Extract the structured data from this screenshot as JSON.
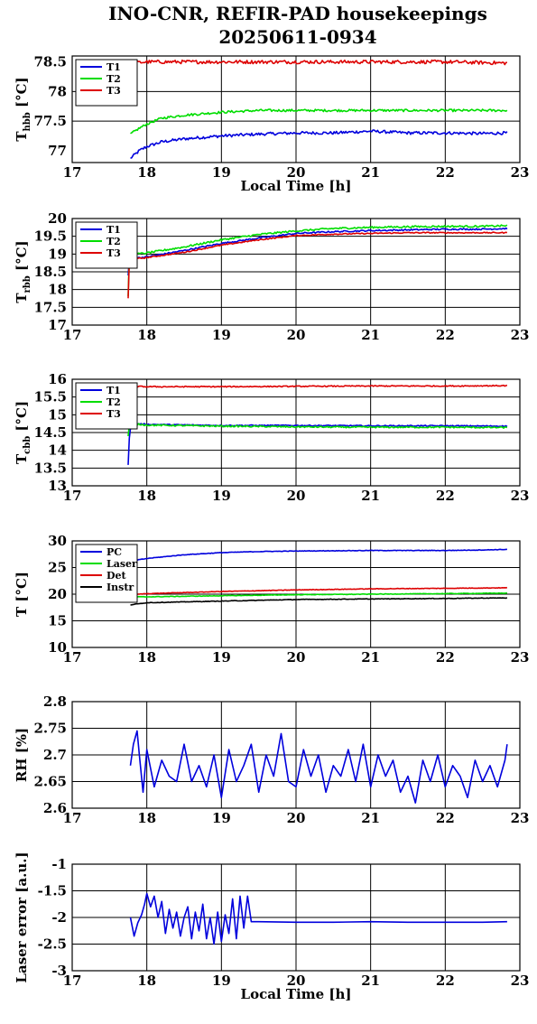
{
  "figure": {
    "title_line1": "INO-CNR, REFIR-PAD housekeepings",
    "title_line2": "20250611-0934"
  },
  "colors": {
    "blue": "#0000dd",
    "green": "#00dd00",
    "red": "#dd0000",
    "black": "#000000"
  },
  "chart_data": [
    {
      "type": "line",
      "ylabel_main": "T",
      "ylabel_sub": "hbb",
      "ylabel_tail": " [°C]",
      "xlabel": "Local Time [h]",
      "xlim": [
        17,
        23
      ],
      "ylim": [
        76.8,
        78.6
      ],
      "xticks": [
        17,
        18,
        19,
        20,
        21,
        22,
        23
      ],
      "yticks": [
        77,
        77.5,
        78,
        78.5
      ],
      "ytick_labels": [
        "77",
        "77.5",
        "78",
        "78.5"
      ],
      "legend_position": "top-left",
      "series": [
        {
          "name": "T1",
          "color": "#0000dd",
          "x": [
            17.78,
            17.9,
            18.0,
            18.2,
            18.5,
            19.0,
            19.5,
            20.0,
            20.5,
            21.0,
            21.5,
            22.0,
            22.5,
            22.83
          ],
          "y": [
            76.87,
            77.0,
            77.07,
            77.15,
            77.2,
            77.25,
            77.28,
            77.3,
            77.3,
            77.33,
            77.3,
            77.3,
            77.29,
            77.3
          ],
          "noise": 0.025
        },
        {
          "name": "T2",
          "color": "#00dd00",
          "x": [
            17.78,
            17.9,
            18.0,
            18.2,
            18.5,
            19.0,
            19.5,
            20.0,
            20.5,
            21.0,
            21.5,
            22.0,
            22.5,
            22.83
          ],
          "y": [
            77.28,
            77.38,
            77.45,
            77.55,
            77.6,
            77.65,
            77.68,
            77.68,
            77.68,
            77.68,
            77.68,
            77.68,
            77.68,
            77.68
          ],
          "noise": 0.02
        },
        {
          "name": "T3",
          "color": "#dd0000",
          "x": [
            17.78,
            18.0,
            19.0,
            20.0,
            21.0,
            22.0,
            22.83
          ],
          "y": [
            78.48,
            78.5,
            78.5,
            78.5,
            78.5,
            78.5,
            78.48
          ],
          "noise": 0.03
        }
      ]
    },
    {
      "type": "line",
      "ylabel_main": "T",
      "ylabel_sub": "rbb",
      "ylabel_tail": " [°C]",
      "xlabel": "",
      "xlim": [
        17,
        23
      ],
      "ylim": [
        17,
        20
      ],
      "xticks": [
        17,
        18,
        19,
        20,
        21,
        22,
        23
      ],
      "yticks": [
        17,
        17.5,
        18,
        18.5,
        19,
        19.5,
        20
      ],
      "ytick_labels": [
        "17",
        "17.5",
        "18",
        "18.5",
        "19",
        "19.5",
        "20"
      ],
      "legend_position": "top-left",
      "series": [
        {
          "name": "T1",
          "color": "#0000dd",
          "x": [
            17.75,
            17.76,
            17.78,
            18.0,
            18.5,
            19.0,
            19.5,
            20.0,
            20.5,
            21.0,
            21.5,
            22.0,
            22.5,
            22.83
          ],
          "y": [
            18.4,
            18.85,
            18.87,
            18.92,
            19.1,
            19.3,
            19.45,
            19.58,
            19.63,
            19.66,
            19.68,
            19.7,
            19.7,
            19.72
          ],
          "noise": 0.02
        },
        {
          "name": "T2",
          "color": "#00dd00",
          "x": [
            17.75,
            17.76,
            17.78,
            18.0,
            18.5,
            19.0,
            19.5,
            20.0,
            20.5,
            21.0,
            21.5,
            22.0,
            22.5,
            22.83
          ],
          "y": [
            17.8,
            18.95,
            18.98,
            19.03,
            19.2,
            19.4,
            19.55,
            19.65,
            19.72,
            19.75,
            19.77,
            19.78,
            19.78,
            19.8
          ],
          "noise": 0.025
        },
        {
          "name": "T3",
          "color": "#dd0000",
          "x": [
            17.75,
            17.76,
            17.78,
            18.0,
            18.5,
            19.0,
            19.5,
            20.0,
            20.5,
            21.0,
            21.5,
            22.0,
            22.5,
            22.83
          ],
          "y": [
            17.75,
            18.8,
            18.85,
            18.9,
            19.05,
            19.25,
            19.4,
            19.52,
            19.56,
            19.58,
            19.6,
            19.6,
            19.6,
            19.6
          ],
          "noise": 0.015
        }
      ]
    },
    {
      "type": "line",
      "ylabel_main": "T",
      "ylabel_sub": "cbb",
      "ylabel_tail": " [°C]",
      "xlabel": "",
      "xlim": [
        17,
        23
      ],
      "ylim": [
        13,
        16
      ],
      "xticks": [
        17,
        18,
        19,
        20,
        21,
        22,
        23
      ],
      "yticks": [
        13,
        13.5,
        14,
        14.5,
        15,
        15.5,
        16
      ],
      "ytick_labels": [
        "13",
        "13.5",
        "14",
        "14.5",
        "15",
        "15.5",
        "16"
      ],
      "legend_position": "top-left",
      "series": [
        {
          "name": "T1",
          "color": "#0000dd",
          "x": [
            17.75,
            17.77,
            17.8,
            18.0,
            19.0,
            20.0,
            21.0,
            22.0,
            22.83
          ],
          "y": [
            13.6,
            14.55,
            14.76,
            14.73,
            14.7,
            14.7,
            14.69,
            14.69,
            14.68
          ],
          "noise": 0.015
        },
        {
          "name": "T2",
          "color": "#00dd00",
          "x": [
            17.75,
            17.77,
            17.8,
            18.0,
            19.0,
            20.0,
            21.0,
            22.0,
            22.83
          ],
          "y": [
            14.4,
            14.8,
            14.75,
            14.71,
            14.68,
            14.66,
            14.65,
            14.65,
            14.64
          ],
          "noise": 0.02
        },
        {
          "name": "T3",
          "color": "#dd0000",
          "x": [
            17.75,
            17.8,
            18.0,
            19.0,
            20.0,
            21.0,
            22.0,
            22.83
          ],
          "y": [
            15.82,
            15.8,
            15.79,
            15.79,
            15.8,
            15.81,
            15.81,
            15.82
          ],
          "noise": 0.015
        }
      ]
    },
    {
      "type": "line",
      "ylabel_main": "T [°C]",
      "ylabel_sub": "",
      "ylabel_tail": "",
      "xlabel": "",
      "xlim": [
        17,
        23
      ],
      "ylim": [
        10,
        30
      ],
      "xticks": [
        17,
        18,
        19,
        20,
        21,
        22,
        23
      ],
      "yticks": [
        10,
        15,
        20,
        25,
        30
      ],
      "ytick_labels": [
        "10",
        "15",
        "20",
        "25",
        "30"
      ],
      "legend_position": "top-left",
      "series": [
        {
          "name": "PC",
          "color": "#0000dd",
          "x": [
            17.78,
            18.0,
            18.5,
            19.0,
            19.5,
            20.0,
            21.0,
            22.0,
            22.5,
            22.83
          ],
          "y": [
            26.2,
            26.7,
            27.4,
            27.8,
            28.0,
            28.1,
            28.2,
            28.2,
            28.3,
            28.4
          ],
          "noise": 0.05
        },
        {
          "name": "Laser",
          "color": "#00dd00",
          "x": [
            17.78,
            18.0,
            19.0,
            20.0,
            21.0,
            22.0,
            22.83
          ],
          "y": [
            19.5,
            19.5,
            19.7,
            19.9,
            20.0,
            20.1,
            20.2
          ],
          "noise": 0.05
        },
        {
          "name": "Det",
          "color": "#dd0000",
          "x": [
            17.78,
            18.0,
            19.0,
            20.0,
            21.0,
            22.0,
            22.83
          ],
          "y": [
            19.9,
            20.1,
            20.5,
            20.8,
            21.0,
            21.1,
            21.2
          ],
          "noise": 0.05
        },
        {
          "name": "Instr",
          "color": "#000000",
          "x": [
            17.78,
            18.0,
            19.0,
            20.0,
            21.0,
            22.0,
            22.83
          ],
          "y": [
            18.0,
            18.4,
            18.7,
            19.0,
            19.1,
            19.2,
            19.3
          ],
          "noise": 0.05
        }
      ]
    },
    {
      "type": "line",
      "ylabel_main": "RH [%]",
      "ylabel_sub": "",
      "ylabel_tail": "",
      "xlabel": "",
      "xlim": [
        17,
        23
      ],
      "ylim": [
        2.6,
        2.8
      ],
      "xticks": [
        17,
        18,
        19,
        20,
        21,
        22,
        23
      ],
      "yticks": [
        2.6,
        2.65,
        2.7,
        2.75,
        2.8
      ],
      "ytick_labels": [
        "2.6",
        "2.65",
        "2.7",
        "2.75",
        "2.8"
      ],
      "legend_position": "none",
      "series": [
        {
          "name": "",
          "color": "#0000dd",
          "x": [
            17.78,
            17.82,
            17.87,
            17.9,
            17.95,
            18.0,
            18.1,
            18.2,
            18.3,
            18.4,
            18.5,
            18.6,
            18.7,
            18.8,
            18.9,
            19.0,
            19.1,
            19.2,
            19.3,
            19.4,
            19.5,
            19.6,
            19.7,
            19.8,
            19.9,
            20.0,
            20.1,
            20.2,
            20.3,
            20.4,
            20.5,
            20.6,
            20.7,
            20.8,
            20.9,
            21.0,
            21.1,
            21.2,
            21.3,
            21.4,
            21.5,
            21.6,
            21.7,
            21.8,
            21.9,
            22.0,
            22.1,
            22.2,
            22.3,
            22.4,
            22.5,
            22.6,
            22.7,
            22.8,
            22.83
          ],
          "y": [
            2.68,
            2.72,
            2.745,
            2.7,
            2.63,
            2.71,
            2.64,
            2.69,
            2.66,
            2.65,
            2.72,
            2.65,
            2.68,
            2.64,
            2.7,
            2.62,
            2.71,
            2.65,
            2.68,
            2.72,
            2.63,
            2.7,
            2.66,
            2.74,
            2.65,
            2.64,
            2.71,
            2.66,
            2.7,
            2.63,
            2.68,
            2.66,
            2.71,
            2.65,
            2.72,
            2.64,
            2.7,
            2.66,
            2.69,
            2.63,
            2.66,
            2.61,
            2.69,
            2.65,
            2.7,
            2.64,
            2.68,
            2.66,
            2.62,
            2.69,
            2.65,
            2.68,
            2.64,
            2.69,
            2.72
          ],
          "noise": 0.0
        }
      ]
    },
    {
      "type": "line",
      "ylabel_main": "Laser error [a.u.]",
      "ylabel_sub": "",
      "ylabel_tail": "",
      "xlabel": "Local Time [h]",
      "xlim": [
        17,
        23
      ],
      "ylim": [
        -3,
        -1
      ],
      "xticks": [
        17,
        18,
        19,
        20,
        21,
        22,
        23
      ],
      "yticks": [
        -3,
        -2.5,
        -2,
        -1.5,
        -1
      ],
      "ytick_labels": [
        "-3",
        "-2.5",
        "-2",
        "-1.5",
        "-1"
      ],
      "legend_position": "none",
      "series": [
        {
          "name": "",
          "color": "#0000dd",
          "x": [
            17.78,
            17.83,
            17.88,
            17.93,
            17.97,
            18.0,
            18.05,
            18.1,
            18.15,
            18.2,
            18.25,
            18.3,
            18.35,
            18.4,
            18.45,
            18.5,
            18.55,
            18.6,
            18.65,
            18.7,
            18.75,
            18.8,
            18.85,
            18.9,
            18.95,
            19.0,
            19.05,
            19.1,
            19.15,
            19.2,
            19.25,
            19.3,
            19.35,
            19.4,
            19.5,
            20.0,
            20.5,
            21.0,
            21.5,
            22.0,
            22.5,
            22.83
          ],
          "y": [
            -2.0,
            -2.35,
            -2.1,
            -1.95,
            -1.75,
            -1.55,
            -1.8,
            -1.6,
            -2.0,
            -1.7,
            -2.3,
            -1.85,
            -2.2,
            -1.9,
            -2.35,
            -2.0,
            -1.8,
            -2.4,
            -1.9,
            -2.25,
            -1.75,
            -2.4,
            -2.0,
            -2.5,
            -1.9,
            -2.45,
            -1.95,
            -2.3,
            -1.65,
            -2.4,
            -1.6,
            -2.2,
            -1.6,
            -2.08,
            -2.08,
            -2.09,
            -2.09,
            -2.08,
            -2.09,
            -2.09,
            -2.09,
            -2.08
          ],
          "noise": 0.0
        }
      ]
    }
  ]
}
